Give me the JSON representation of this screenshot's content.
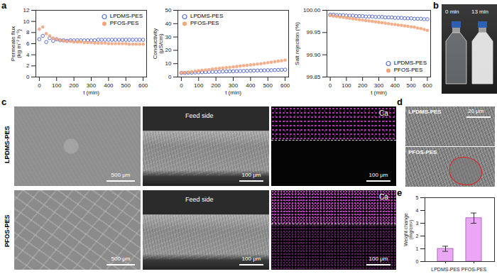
{
  "panel_labels": [
    "a",
    "b",
    "c",
    "d",
    "e"
  ],
  "chart_data": [
    {
      "type": "line",
      "xlabel": "t (min)",
      "ylabel": "Permeate flux\n(kg m⁻² h⁻¹)",
      "x": [
        0,
        20,
        40,
        60,
        80,
        100,
        120,
        140,
        160,
        180,
        200,
        220,
        240,
        260,
        280,
        300,
        320,
        340,
        360,
        380,
        400,
        420,
        440,
        460,
        480,
        500,
        520,
        540,
        560,
        580,
        600
      ],
      "series": [
        {
          "name": "LPDMS-PES",
          "color": "#5b6fd6",
          "marker": "circle-open",
          "values": [
            6.8,
            7.4,
            6.3,
            7.0,
            6.5,
            6.8,
            6.6,
            6.6,
            6.5,
            6.6,
            6.6,
            6.6,
            6.6,
            6.6,
            6.6,
            6.6,
            6.6,
            6.7,
            6.7,
            6.7,
            6.7,
            6.7,
            6.7,
            6.7,
            6.7,
            6.7,
            6.7,
            6.7,
            6.7,
            6.7,
            6.7
          ]
        },
        {
          "name": "PFOS-PES",
          "color": "#f4a57c",
          "marker": "circle",
          "values": [
            8.6,
            9.0,
            7.8,
            7.4,
            7.0,
            6.8,
            6.6,
            6.5,
            6.4,
            6.4,
            6.3,
            6.3,
            6.3,
            6.2,
            6.2,
            6.2,
            6.1,
            6.1,
            6.1,
            6.1,
            6.0,
            6.0,
            6.0,
            6.0,
            6.0,
            6.0,
            5.9,
            5.9,
            5.9,
            5.9,
            5.9
          ]
        }
      ],
      "xlim": [
        -20,
        620
      ],
      "xticks": [
        0,
        100,
        200,
        300,
        400,
        500,
        600
      ],
      "ylim": [
        0,
        12
      ],
      "yticks": [
        0,
        2,
        4,
        6,
        8,
        10,
        12
      ],
      "grid": false,
      "legend": "top-right"
    },
    {
      "type": "line",
      "xlabel": "t (min)",
      "ylabel": "Conductivity\n(μS/cm)",
      "x": [
        0,
        20,
        40,
        60,
        80,
        100,
        120,
        140,
        160,
        180,
        200,
        220,
        240,
        260,
        280,
        300,
        320,
        340,
        360,
        380,
        400,
        420,
        440,
        460,
        480,
        500,
        520,
        540,
        560,
        580,
        600
      ],
      "series": [
        {
          "name": "LPDMS-PES",
          "color": "#5b6fd6",
          "marker": "circle-open",
          "values": [
            3.0,
            3.1,
            3.2,
            3.3,
            3.4,
            3.5,
            3.6,
            3.7,
            3.8,
            3.9,
            3.9,
            4.0,
            4.1,
            4.2,
            4.3,
            4.3,
            4.4,
            4.5,
            4.5,
            4.6,
            4.7,
            4.8,
            4.9,
            4.9,
            5.0,
            5.1,
            5.1,
            5.2,
            5.3,
            5.4,
            5.5
          ]
        },
        {
          "name": "PFOS-PES",
          "color": "#f4a57c",
          "marker": "circle",
          "values": [
            3.0,
            3.3,
            3.6,
            4.0,
            4.3,
            4.7,
            5.0,
            5.3,
            5.6,
            5.9,
            6.2,
            6.5,
            6.7,
            7.0,
            7.3,
            7.6,
            7.9,
            8.2,
            8.5,
            8.8,
            9.1,
            9.4,
            9.7,
            10.0,
            10.4,
            10.8,
            11.1,
            11.5,
            11.9,
            12.2,
            12.6
          ]
        }
      ],
      "xlim": [
        -20,
        620
      ],
      "xticks": [
        0,
        100,
        200,
        300,
        400,
        500,
        600
      ],
      "ylim": [
        0,
        50
      ],
      "yticks": [
        0,
        10,
        20,
        30,
        40,
        50
      ],
      "grid": false,
      "legend": "top-left"
    },
    {
      "type": "line",
      "xlabel": "t (min)",
      "ylabel": "Salt rejection (%)",
      "x": [
        0,
        20,
        40,
        60,
        80,
        100,
        120,
        140,
        160,
        180,
        200,
        220,
        240,
        260,
        280,
        300,
        320,
        340,
        360,
        380,
        400,
        420,
        440,
        460,
        480,
        500,
        520,
        540,
        560,
        580,
        600
      ],
      "series": [
        {
          "name": "LPDMS-PES",
          "color": "#5b6fd6",
          "marker": "circle-open",
          "values": [
            99.99,
            99.99,
            99.989,
            99.989,
            99.989,
            99.988,
            99.988,
            99.988,
            99.987,
            99.987,
            99.987,
            99.986,
            99.986,
            99.986,
            99.985,
            99.985,
            99.985,
            99.984,
            99.984,
            99.984,
            99.983,
            99.983,
            99.983,
            99.982,
            99.982,
            99.982,
            99.981,
            99.981,
            99.981,
            99.98,
            99.98
          ]
        },
        {
          "name": "PFOS-PES",
          "color": "#f4a57c",
          "marker": "circle",
          "values": [
            99.988,
            99.987,
            99.986,
            99.985,
            99.984,
            99.983,
            99.982,
            99.981,
            99.98,
            99.979,
            99.978,
            99.977,
            99.976,
            99.975,
            99.974,
            99.973,
            99.972,
            99.971,
            99.97,
            99.969,
            99.968,
            99.967,
            99.966,
            99.965,
            99.964,
            99.963,
            99.962,
            99.96,
            99.959,
            99.957,
            99.955
          ]
        }
      ],
      "xlim": [
        -20,
        620
      ],
      "xticks": [
        0,
        100,
        200,
        300,
        400,
        500,
        600
      ],
      "ylim": [
        99.85,
        100.0
      ],
      "yticks": [
        99.85,
        {
          "value": 99.9,
          "label": "99.90"
        },
        99.95,
        {
          "value": 100,
          "label": "100.00"
        }
      ],
      "grid": false,
      "legend": "bottom-right"
    },
    {
      "type": "bar",
      "ylabel": "Weight change\n(mg/cm²)",
      "categories": [
        "LPDMS-PES",
        "PFOS-PES"
      ],
      "values": [
        1.0,
        3.4
      ],
      "errors": [
        0.2,
        0.4
      ],
      "color": "#eaa8f4",
      "ylim": [
        0,
        5
      ],
      "yticks": [
        0,
        1,
        2,
        3,
        4,
        5
      ],
      "grid": false
    }
  ],
  "photo": {
    "times": [
      "0 min",
      "13 min"
    ]
  },
  "sem": {
    "rows": [
      {
        "membrane": "LPDMS-PES",
        "surface_scale": "500 μm",
        "cross_section_label": "Feed side",
        "cross_section_scale": "100 μm",
        "map_label": "Ca",
        "map_scale": "100 μm"
      },
      {
        "membrane": "PFOS-PES",
        "surface_scale": "500 μm",
        "cross_section_label": "Feed side",
        "cross_section_scale": "100 μm",
        "map_label": "Ca",
        "map_scale": "100 μm"
      }
    ]
  },
  "cross_section_detail": {
    "labels": [
      "LPDMS-PES",
      "PFOS-PES"
    ],
    "scale": "20 μm"
  }
}
